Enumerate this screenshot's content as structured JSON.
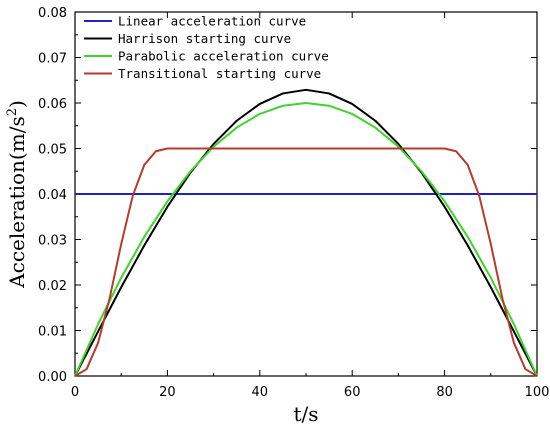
{
  "chart_data": {
    "type": "line",
    "xlabel": "t/s",
    "ylabel_main": "Acceleration",
    "ylabel_unit_open": "(m/s",
    "ylabel_unit_exp": "2",
    "ylabel_unit_close": ")",
    "xlim": [
      0,
      100
    ],
    "ylim": [
      0,
      0.08
    ],
    "xticks": [
      0,
      20,
      40,
      60,
      80,
      100
    ],
    "yticks": [
      "0.00",
      "0.01",
      "0.02",
      "0.03",
      "0.04",
      "0.05",
      "0.06",
      "0.07",
      "0.08"
    ],
    "grid": false,
    "legend_position": "top-left",
    "series": [
      {
        "name": "Linear acceleration curve",
        "color": "#1f22c8",
        "x": [
          0,
          100
        ],
        "y": [
          0.04,
          0.04
        ]
      },
      {
        "name": "Harrison starting curve",
        "color": "#000000",
        "x": [
          0,
          5,
          10,
          15,
          20,
          25,
          30,
          35,
          40,
          45,
          50,
          55,
          60,
          65,
          70,
          75,
          80,
          85,
          90,
          95,
          100
        ],
        "y": [
          0,
          0.0098,
          0.0195,
          0.0287,
          0.0372,
          0.0447,
          0.051,
          0.0561,
          0.0598,
          0.0621,
          0.0629,
          0.0621,
          0.0598,
          0.0561,
          0.051,
          0.0447,
          0.0372,
          0.0287,
          0.0195,
          0.0098,
          0
        ]
      },
      {
        "name": "Parabolic acceleration curve",
        "color": "#3dd62a",
        "x": [
          0,
          5,
          10,
          15,
          20,
          25,
          30,
          35,
          40,
          45,
          50,
          55,
          60,
          65,
          70,
          75,
          80,
          85,
          90,
          95,
          100
        ],
        "y": [
          0,
          0.0114,
          0.0216,
          0.0306,
          0.0384,
          0.045,
          0.0504,
          0.0546,
          0.0576,
          0.0594,
          0.06,
          0.0594,
          0.0576,
          0.0546,
          0.0504,
          0.045,
          0.0384,
          0.0306,
          0.0216,
          0.0114,
          0
        ]
      },
      {
        "name": "Transitional starting curve",
        "color": "#b83a2a",
        "x": [
          0,
          2.5,
          5,
          7.5,
          10,
          12.5,
          15,
          17.5,
          20,
          80,
          82.5,
          85,
          87.5,
          90,
          92.5,
          95,
          97.5,
          100
        ],
        "y": [
          0,
          0.0015,
          0.0073,
          0.0171,
          0.029,
          0.0396,
          0.0464,
          0.0494,
          0.05,
          0.05,
          0.0494,
          0.0464,
          0.0396,
          0.029,
          0.0171,
          0.0073,
          0.0015,
          0
        ]
      }
    ]
  }
}
